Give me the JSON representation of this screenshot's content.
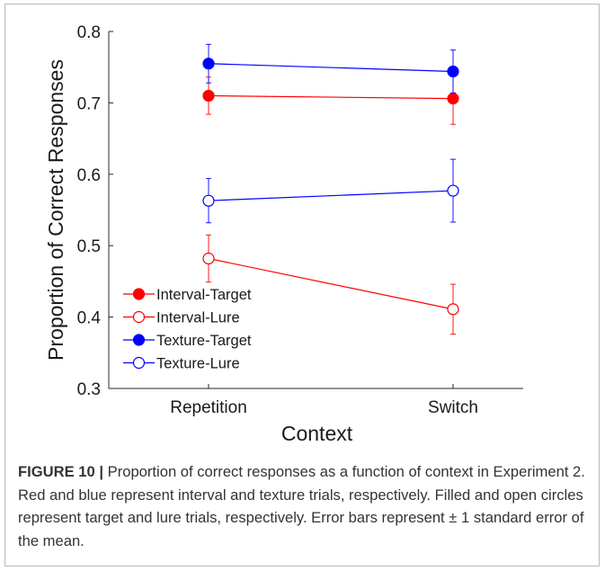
{
  "chart_data": {
    "type": "line",
    "categories": [
      "Repetition",
      "Switch"
    ],
    "xlabel": "Context",
    "ylabel": "Proportion of Correct Responses",
    "ylim": [
      0.3,
      0.8
    ],
    "yticks": [
      "0.3",
      "0.4",
      "0.5",
      "0.6",
      "0.7",
      "0.8"
    ],
    "grid": false,
    "legend_position": "bottom-left",
    "series": [
      {
        "name": "Interval-Target",
        "color": "#ff0000",
        "marker": "filled",
        "values": [
          0.71,
          0.706
        ],
        "errors": [
          0.026,
          0.036
        ]
      },
      {
        "name": "Interval-Lure",
        "color": "#ff0000",
        "marker": "open",
        "values": [
          0.482,
          0.411
        ],
        "errors": [
          0.033,
          0.035
        ]
      },
      {
        "name": "Texture-Target",
        "color": "#0000ff",
        "marker": "filled",
        "values": [
          0.755,
          0.744
        ],
        "errors": [
          0.027,
          0.03
        ]
      },
      {
        "name": "Texture-Lure",
        "color": "#0000ff",
        "marker": "open",
        "values": [
          0.563,
          0.577
        ],
        "errors": [
          0.031,
          0.044
        ]
      }
    ]
  },
  "caption": {
    "label": "FIGURE 10 |",
    "text": " Proportion of correct responses as a function of context in Experiment 2. Red and blue represent interval and texture trials, respectively. Filled and open circles represent target and lure trials, respectively. Error bars represent ± 1 standard error of the mean."
  }
}
